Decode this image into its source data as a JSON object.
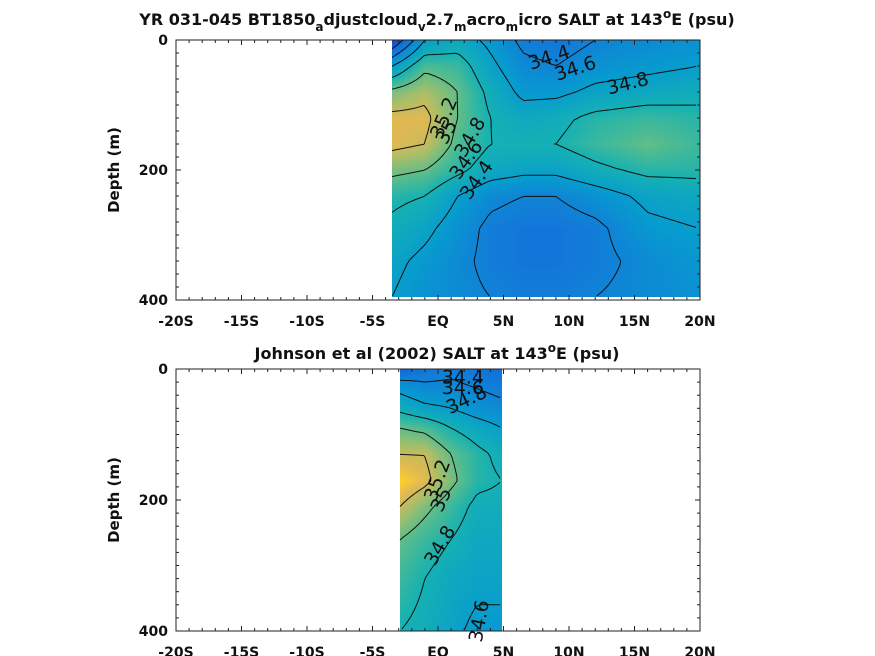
{
  "chart_data": [
    {
      "type": "heatmap",
      "title_parts": [
        {
          "text": "YR 031-045 BT1850",
          "style": "normal"
        },
        {
          "text": "a",
          "style": "sub"
        },
        {
          "text": "djustcloud",
          "style": "normal"
        },
        {
          "text": "v",
          "style": "sub"
        },
        {
          "text": "2.7",
          "style": "normal"
        },
        {
          "text": "m",
          "style": "sub"
        },
        {
          "text": "acro",
          "style": "normal"
        },
        {
          "text": "m",
          "style": "sub"
        },
        {
          "text": "icro SALT at 143",
          "style": "normal"
        },
        {
          "text": "o",
          "style": "sup"
        },
        {
          "text": "E (psu)",
          "style": "normal"
        }
      ],
      "xlabel": "",
      "ylabel": "Depth (m)",
      "xlim": [
        -20,
        20
      ],
      "ylim": [
        400,
        0
      ],
      "x_ticks": [
        -20,
        -15,
        -10,
        -5,
        0,
        5,
        10,
        15,
        20
      ],
      "x_ticklabels": [
        "-20S",
        "-15S",
        "-10S",
        "-5S",
        "EQ",
        "5N",
        "10N",
        "15N",
        "20N"
      ],
      "y_ticks": [
        0,
        200,
        400
      ],
      "y_ticklabels": [
        "0",
        "200",
        "400"
      ],
      "data_extent": {
        "x": [
          -3.5,
          20
        ],
        "y": [
          0,
          395
        ]
      },
      "field": {
        "x": [
          -3.5,
          -1,
          1.5,
          4,
          6.5,
          9,
          12,
          16,
          20
        ],
        "y": [
          0,
          40,
          80,
          120,
          160,
          200,
          240,
          290,
          340,
          395
        ],
        "values": [
          [
            34.0,
            34.6,
            34.7,
            34.55,
            34.35,
            34.3,
            34.4,
            34.45,
            34.5
          ],
          [
            34.6,
            34.95,
            34.9,
            34.65,
            34.45,
            34.4,
            34.5,
            34.55,
            34.6
          ],
          [
            35.05,
            35.15,
            35.0,
            34.75,
            34.55,
            34.55,
            34.65,
            34.7,
            34.75
          ],
          [
            35.25,
            35.25,
            35.0,
            34.8,
            34.7,
            34.75,
            34.85,
            34.9,
            34.85
          ],
          [
            35.25,
            35.2,
            34.95,
            34.8,
            34.8,
            34.8,
            34.9,
            35.0,
            34.9
          ],
          [
            35.05,
            35.0,
            34.85,
            34.7,
            34.65,
            34.65,
            34.75,
            34.85,
            34.85
          ],
          [
            34.85,
            34.8,
            34.6,
            34.45,
            34.4,
            34.4,
            34.5,
            34.65,
            34.7
          ],
          [
            34.75,
            34.65,
            34.5,
            34.35,
            34.3,
            34.3,
            34.35,
            34.55,
            34.6
          ],
          [
            34.65,
            34.55,
            34.45,
            34.35,
            34.3,
            34.3,
            34.35,
            34.45,
            34.55
          ],
          [
            34.6,
            34.5,
            34.45,
            34.4,
            34.35,
            34.35,
            34.4,
            34.45,
            34.5
          ]
        ]
      },
      "contour_levels": [
        34.0,
        34.2,
        34.4,
        34.6,
        34.8,
        35.0,
        35.2
      ],
      "contour_labels": [
        {
          "text": "34.4",
          "x": 8.5,
          "y": 28,
          "rotate": -18
        },
        {
          "text": "34.6",
          "x": 10.5,
          "y": 45,
          "rotate": -18
        },
        {
          "text": "34.8",
          "x": 14.5,
          "y": 68,
          "rotate": -14
        },
        {
          "text": "35.2",
          "x": 0.5,
          "y": 120,
          "rotate": -68
        },
        {
          "text": "35",
          "x": 0.7,
          "y": 142,
          "rotate": -62
        },
        {
          "text": "34.8",
          "x": 2.5,
          "y": 150,
          "rotate": -60
        },
        {
          "text": "34.6",
          "x": 2.2,
          "y": 185,
          "rotate": -55
        },
        {
          "text": "34.4",
          "x": 3.0,
          "y": 216,
          "rotate": -55
        }
      ],
      "colormap": "parula",
      "color_range": [
        33.9,
        35.4
      ],
      "grid": false
    },
    {
      "type": "heatmap",
      "title_parts": [
        {
          "text": "Johnson et al (2002) SALT at 143",
          "style": "normal"
        },
        {
          "text": "o",
          "style": "sup"
        },
        {
          "text": "E (psu)",
          "style": "normal"
        }
      ],
      "xlabel": "",
      "ylabel": "Depth (m)",
      "xlim": [
        -20,
        20
      ],
      "ylim": [
        400,
        0
      ],
      "x_ticks": [
        -20,
        -15,
        -10,
        -5,
        0,
        5,
        10,
        15,
        20
      ],
      "x_ticklabels": [
        "-20S",
        "-15S",
        "-10S",
        "-5S",
        "EQ",
        "5N",
        "10N",
        "15N",
        "20N"
      ],
      "y_ticks": [
        0,
        200,
        400
      ],
      "y_ticklabels": [
        "0",
        "200",
        "400"
      ],
      "data_extent": {
        "x": [
          -2.9,
          4.9
        ],
        "y": [
          0,
          400
        ]
      },
      "field": {
        "x": [
          -2.9,
          -1,
          1,
          3,
          4.9
        ],
        "y": [
          0,
          30,
          60,
          90,
          130,
          170,
          210,
          260,
          320,
          400
        ],
        "values": [
          [
            34.2,
            34.3,
            34.35,
            34.3,
            34.25
          ],
          [
            34.55,
            34.45,
            34.45,
            34.4,
            34.35
          ],
          [
            34.75,
            34.65,
            34.6,
            34.5,
            34.45
          ],
          [
            35.0,
            34.95,
            34.8,
            34.7,
            34.6
          ],
          [
            35.2,
            35.2,
            35.0,
            34.85,
            34.75
          ],
          [
            35.35,
            35.25,
            35.05,
            34.85,
            34.8
          ],
          [
            35.2,
            35.05,
            34.9,
            34.75,
            34.75
          ],
          [
            35.0,
            34.9,
            34.8,
            34.7,
            34.7
          ],
          [
            34.9,
            34.8,
            34.7,
            34.65,
            34.65
          ],
          [
            34.8,
            34.75,
            34.65,
            34.55,
            34.55
          ]
        ]
      },
      "contour_levels": [
        34.2,
        34.4,
        34.6,
        34.8,
        35.0,
        35.2
      ],
      "contour_labels": [
        {
          "text": "34.4",
          "x": 1.9,
          "y": 14,
          "rotate": 0
        },
        {
          "text": "34.6",
          "x": 1.9,
          "y": 30,
          "rotate": 0
        },
        {
          "text": "34.8",
          "x": 2.2,
          "y": 48,
          "rotate": -25
        },
        {
          "text": "35.2",
          "x": 0.0,
          "y": 170,
          "rotate": -70
        },
        {
          "text": "35",
          "x": 0.3,
          "y": 200,
          "rotate": -65
        },
        {
          "text": "34.8",
          "x": 0.2,
          "y": 270,
          "rotate": -60
        },
        {
          "text": "34.6",
          "x": 3.2,
          "y": 385,
          "rotate": -80
        }
      ],
      "colormap": "parula",
      "color_range": [
        33.9,
        35.4
      ],
      "grid": false
    }
  ]
}
